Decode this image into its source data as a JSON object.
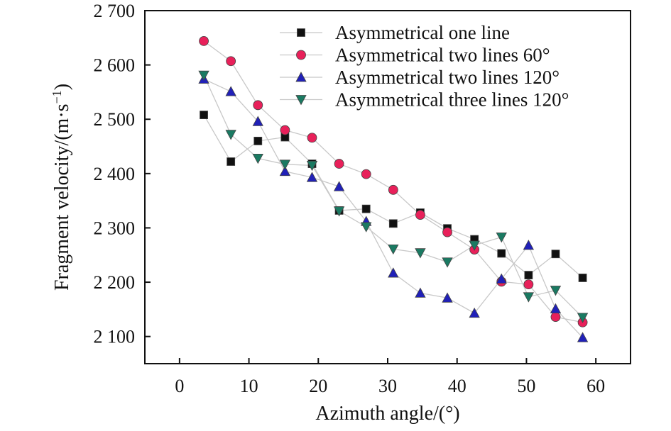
{
  "chart_data": {
    "type": "line",
    "xlabel": "Azimuth angle/(°)",
    "ylabel": "Fragment velocity/(m·s",
    "ylabel_sup": "−1",
    "ylabel_close": ")",
    "xlim": [
      -5,
      65
    ],
    "ylim": [
      2050,
      2700
    ],
    "x_ticks": [
      0,
      10,
      20,
      30,
      40,
      50,
      60
    ],
    "x_tick_labels": [
      "0",
      "10",
      "20",
      "30",
      "40",
      "50",
      "60"
    ],
    "y_ticks": [
      2100,
      2200,
      2300,
      2400,
      2500,
      2600,
      2700
    ],
    "y_tick_labels": [
      "2 100",
      "2 200",
      "2 300",
      "2 400",
      "2 500",
      "2 600",
      "2 700"
    ],
    "legend_position": "top-right",
    "x": [
      3.5,
      7.4,
      11.3,
      15.2,
      19.1,
      23.0,
      26.9,
      30.8,
      34.7,
      38.6,
      42.5,
      46.4,
      50.3,
      54.2,
      58.1
    ],
    "series": [
      {
        "name": "Asymmetrical one line",
        "marker": "square",
        "color": "#111111",
        "values": [
          2508,
          2422,
          2460,
          2467,
          2418,
          2332,
          2335,
          2308,
          2328,
          2299,
          2279,
          2253,
          2213,
          2252,
          2208
        ]
      },
      {
        "name": "Asymmetrical two lines 60°",
        "marker": "circle",
        "color": "#e8205a",
        "values": [
          2644,
          2607,
          2526,
          2480,
          2466,
          2418,
          2399,
          2370,
          2324,
          2292,
          2260,
          2201,
          2196,
          2136,
          2126
        ]
      },
      {
        "name": "Asymmetrical two lines 120°",
        "marker": "triangle-up",
        "color": "#2020b8",
        "values": [
          2574,
          2551,
          2496,
          2404,
          2393,
          2376,
          2312,
          2217,
          2180,
          2171,
          2143,
          2206,
          2268,
          2151,
          2098
        ]
      },
      {
        "name": "Asymmetrical three lines 120°",
        "marker": "triangle-down",
        "color": "#1a7a62",
        "values": [
          2581,
          2472,
          2428,
          2417,
          2415,
          2331,
          2302,
          2261,
          2254,
          2237,
          2268,
          2283,
          2173,
          2185,
          2135
        ]
      }
    ]
  }
}
